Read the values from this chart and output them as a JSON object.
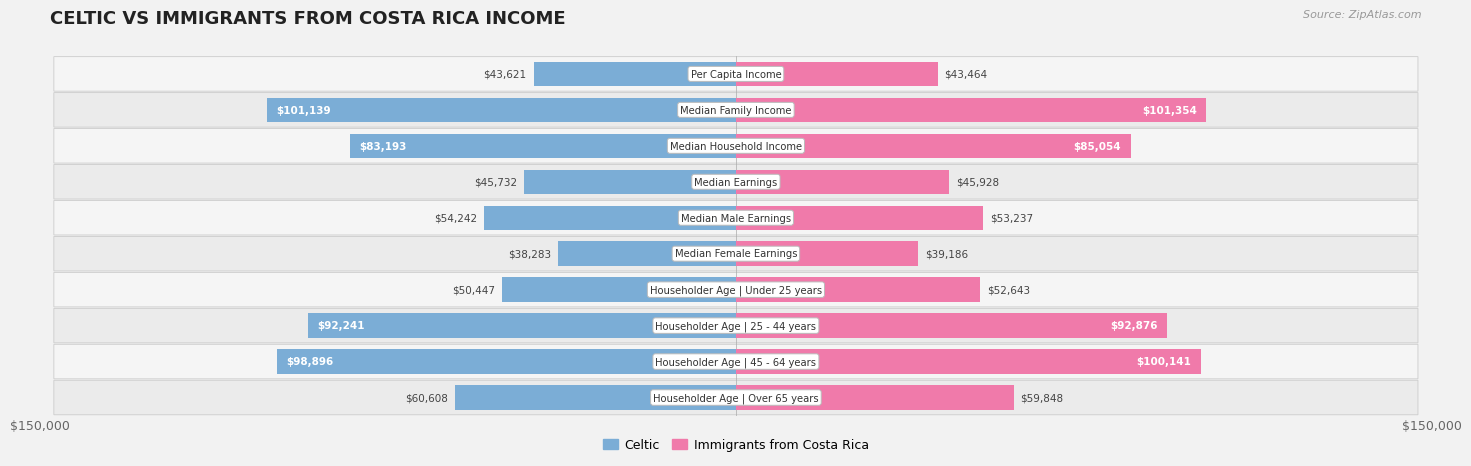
{
  "title": "CELTIC VS IMMIGRANTS FROM COSTA RICA INCOME",
  "source": "Source: ZipAtlas.com",
  "categories": [
    "Per Capita Income",
    "Median Family Income",
    "Median Household Income",
    "Median Earnings",
    "Median Male Earnings",
    "Median Female Earnings",
    "Householder Age | Under 25 years",
    "Householder Age | 25 - 44 years",
    "Householder Age | 45 - 64 years",
    "Householder Age | Over 65 years"
  ],
  "celtic_values": [
    43621,
    101139,
    83193,
    45732,
    54242,
    38283,
    50447,
    92241,
    98896,
    60608
  ],
  "costa_rica_values": [
    43464,
    101354,
    85054,
    45928,
    53237,
    39186,
    52643,
    92876,
    100141,
    59848
  ],
  "celtic_color": "#7badd6",
  "celtic_color_dark": "#5a9ac8",
  "costa_rica_color": "#f07aaa",
  "costa_rica_color_dark": "#e05090",
  "celtic_label": "Celtic",
  "costa_rica_label": "Immigrants from Costa Rica",
  "max_value": 150000,
  "value_threshold": 75000,
  "title_fontsize": 13,
  "tick_label": "$150,000",
  "row_colors": [
    "#f0f0f0",
    "#e8e8e8"
  ],
  "row_edge_color": "#d8d8d8"
}
